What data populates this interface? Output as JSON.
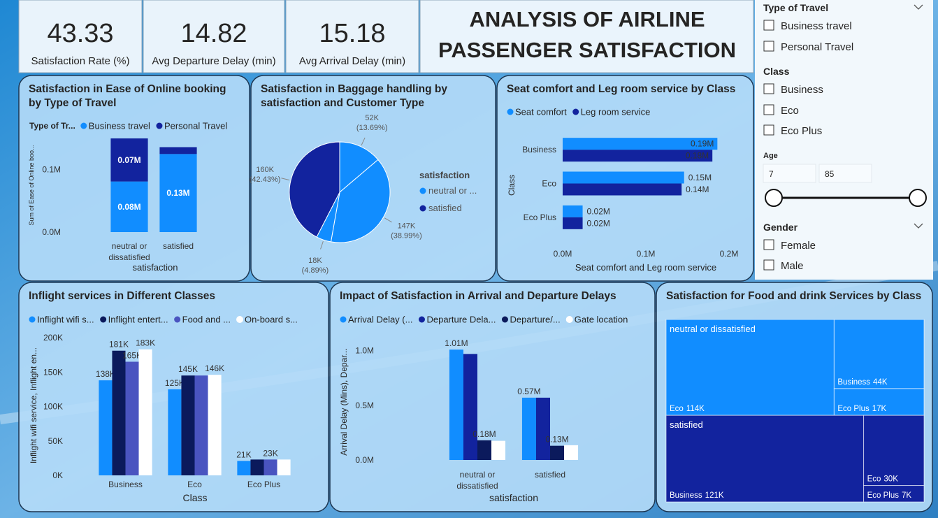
{
  "kpis": [
    {
      "value": 43.33,
      "label": "Satisfaction Rate (%)"
    },
    {
      "value": 14.82,
      "label": "Avg Departure Delay (min)"
    },
    {
      "value": 15.18,
      "label": "Avg Arrival Delay (min)"
    }
  ],
  "title": "ANALYSIS OF AIRLINE PASSENGER SATISFACTION",
  "filters": {
    "type_of_travel": {
      "title": "Type of Travel",
      "options": [
        "Business travel",
        "Personal Travel"
      ]
    },
    "class": {
      "title": "Class",
      "options": [
        "Business",
        "Eco",
        "Eco Plus"
      ]
    },
    "age": {
      "title": "Age",
      "min": 7,
      "max": 85
    },
    "gender": {
      "title": "Gender",
      "options": [
        "Female",
        "Male"
      ]
    }
  },
  "chart_data": [
    {
      "type": "bar",
      "stacked": true,
      "title": "Satisfaction in Ease of Online booking by Type of Travel",
      "legend_title": "Type of Tr...",
      "categories": [
        "neutral or dissatisfied",
        "satisfied"
      ],
      "series": [
        {
          "name": "Business travel",
          "color": "#118DFF",
          "values": [
            81000,
            125000
          ],
          "value_labels": [
            "0.08M",
            "0.13M"
          ]
        },
        {
          "name": "Personal Travel",
          "color": "#12239E",
          "values": [
            69000,
            11000
          ],
          "value_labels": [
            "0.07M",
            null
          ]
        }
      ],
      "ylim": [
        0,
        150000
      ],
      "yticks": [
        {
          "value": 0,
          "label": "0.0M"
        },
        {
          "value": 100000,
          "label": "0.1M"
        }
      ],
      "xlabel": "satisfaction",
      "ylabel": "Sum of Ease of Online boo..."
    },
    {
      "type": "pie",
      "title": "Satisfaction in Baggage handling by satisfaction and Customer Type",
      "legend_title": "satisfaction",
      "legend": [
        {
          "name": "neutral or ...",
          "color": "#118DFF"
        },
        {
          "name": "satisfied",
          "color": "#12239E"
        }
      ],
      "values": [
        52000,
        147000,
        18000,
        160000
      ],
      "value_labels": [
        "52K",
        "147K",
        "18K",
        "160K"
      ],
      "percent_labels": [
        "(13.69%)",
        "(38.99%)",
        "(4.89%)",
        "(42.43%)"
      ],
      "colors": [
        "#118DFF",
        "#118DFF",
        "#118DFF",
        "#12239E"
      ]
    },
    {
      "type": "bar",
      "orientation": "horizontal",
      "title": "Seat comfort and Leg room service by Class",
      "categories": [
        "Business",
        "Eco",
        "Eco Plus"
      ],
      "series": [
        {
          "name": "Seat comfort",
          "color": "#118DFF",
          "values": [
            186000,
            146000,
            24000
          ],
          "value_labels": [
            "0.19M",
            "0.15M",
            "0.02M"
          ]
        },
        {
          "name": "Leg room service",
          "color": "#12239E",
          "values": [
            180000,
            143000,
            24000
          ],
          "value_labels": [
            "0.18M",
            "0.14M",
            "0.02M"
          ]
        }
      ],
      "xlim": [
        0,
        200000
      ],
      "xticks": [
        {
          "value": 0,
          "label": "0.0M"
        },
        {
          "value": 100000,
          "label": "0.1M"
        },
        {
          "value": 200000,
          "label": "0.2M"
        }
      ],
      "xlabel": "Seat comfort and Leg room service",
      "ylabel": "Class"
    },
    {
      "type": "bar",
      "title": "Inflight services in Different Classes",
      "categories": [
        "Business",
        "Eco",
        "Eco Plus"
      ],
      "series": [
        {
          "name": "Inflight wifi s...",
          "color": "#118DFF",
          "values": [
            138000,
            125000,
            21000
          ],
          "value_labels": [
            "138K",
            "125K",
            "21K"
          ]
        },
        {
          "name": "Inflight entert...",
          "color": "#0B1A5C",
          "values": [
            181000,
            145000,
            23000
          ],
          "value_labels": [
            "181K",
            "145K",
            null
          ]
        },
        {
          "name": "Food and ...",
          "color": "#4A54C0",
          "values": [
            165000,
            145000,
            23000
          ],
          "value_labels": [
            "165K",
            null,
            "23K"
          ]
        },
        {
          "name": "On-board s...",
          "color": "#FFFFFF",
          "values": [
            183000,
            146000,
            23000
          ],
          "value_labels": [
            "183K",
            "146K",
            null
          ]
        }
      ],
      "ylim": [
        0,
        200000
      ],
      "yticks": [
        {
          "value": 0,
          "label": "0K"
        },
        {
          "value": 50000,
          "label": "50K"
        },
        {
          "value": 100000,
          "label": "100K"
        },
        {
          "value": 150000,
          "label": "150K"
        },
        {
          "value": 200000,
          "label": "200K"
        }
      ],
      "xlabel": "Class",
      "ylabel": "Inflight wifi service, Inflight en..."
    },
    {
      "type": "bar",
      "title": "Impact of Satisfaction in Arrival and Departure Delays",
      "categories": [
        "neutral or dissatisfied",
        "satisfied"
      ],
      "series": [
        {
          "name": "Arrival Delay (...",
          "color": "#118DFF",
          "values": [
            1010000,
            570000
          ],
          "value_labels": [
            "1.01M",
            "0.57M"
          ]
        },
        {
          "name": "Departure Dela...",
          "color": "#12239E",
          "values": [
            970000,
            570000
          ]
        },
        {
          "name": "Departure/...",
          "color": "#0B1A5C",
          "values": [
            180000,
            130000
          ],
          "value_labels": [
            "0.18M",
            "0.13M"
          ]
        },
        {
          "name": "Gate location",
          "color": "#FFFFFF",
          "values": [
            175000,
            135000
          ]
        }
      ],
      "ylim": [
        0,
        1100000
      ],
      "yticks": [
        {
          "value": 0,
          "label": "0.0M"
        },
        {
          "value": 500000,
          "label": "0.5M"
        },
        {
          "value": 1000000,
          "label": "1.0M"
        }
      ],
      "xlabel": "satisfaction",
      "ylabel": "Arrival Delay (Mins), Depar..."
    },
    {
      "type": "treemap",
      "title": "Satisfaction for Food and drink Services by Class",
      "groups": [
        {
          "name": "neutral or dissatisfied",
          "color": "#118DFF",
          "categories": [
            "Eco",
            "Business",
            "Eco Plus"
          ],
          "values": [
            114000,
            44000,
            17000
          ],
          "value_labels": [
            "114K",
            "44K",
            "17K"
          ]
        },
        {
          "name": "satisfied",
          "color": "#12239E",
          "categories": [
            "Business",
            "Eco",
            "Eco Plus"
          ],
          "values": [
            121000,
            30000,
            7000
          ],
          "value_labels": [
            "121K",
            "30K",
            "7K"
          ]
        }
      ]
    }
  ]
}
